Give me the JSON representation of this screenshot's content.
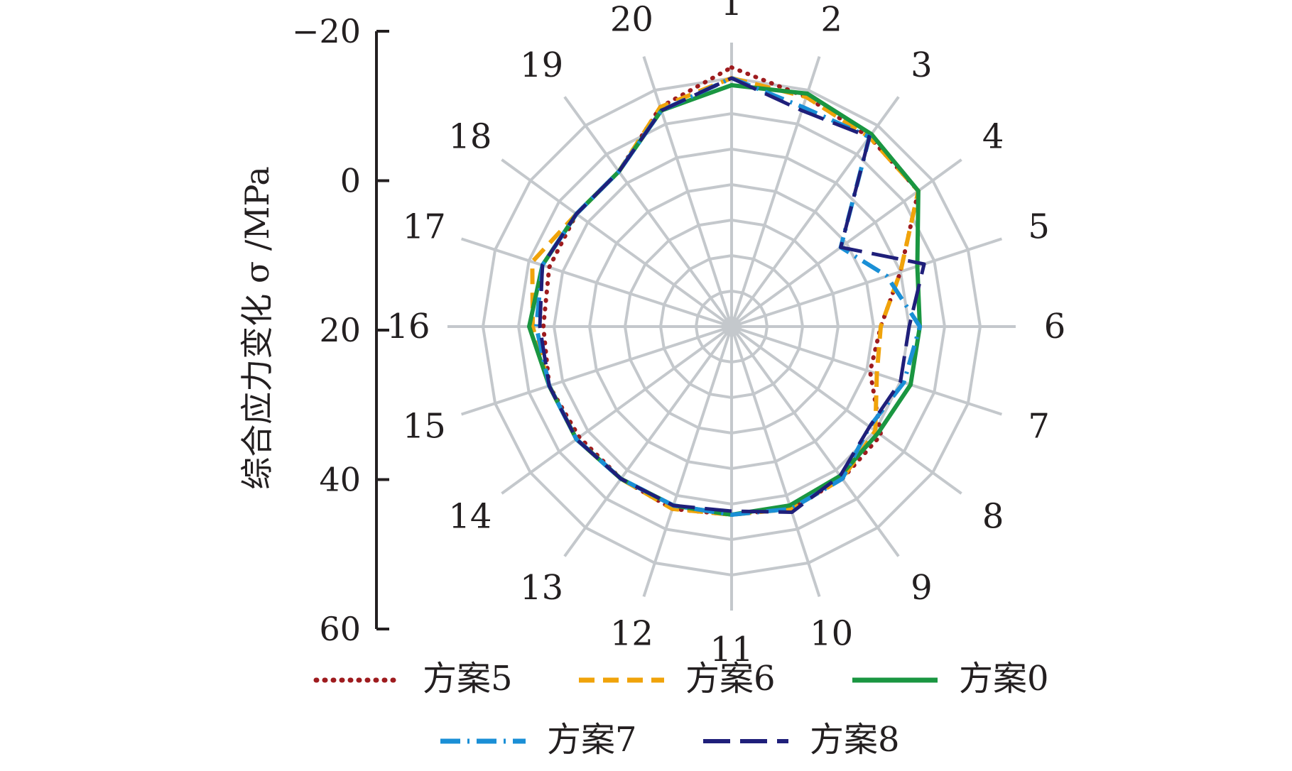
{
  "chart_data": {
    "type": "radar",
    "ylabel": "综合应力变化 σ /MPa",
    "categories": [
      "1",
      "2",
      "3",
      "4",
      "5",
      "6",
      "7",
      "8",
      "9",
      "10",
      "11",
      "12",
      "13",
      "14",
      "15",
      "16",
      "17",
      "18",
      "19",
      "20"
    ],
    "r_axis": {
      "ticks": [
        "-20",
        "0",
        "20",
        "40",
        "60"
      ],
      "ylim": [
        -20,
        60
      ],
      "inverted": true,
      "grid_rings": [
        -10,
        0,
        10,
        20,
        30,
        40,
        50,
        60
      ]
    },
    "grid": true,
    "legend_position": "bottom",
    "series": [
      {
        "name": "方案5",
        "color": "#9e1b1e",
        "style": "dotted",
        "values": [
          -13,
          -8,
          -6,
          -5,
          10,
          18,
          19,
          8,
          7,
          6,
          7,
          6,
          7,
          7,
          6,
          7,
          6,
          6,
          6,
          -5
        ]
      },
      {
        "name": "方案6",
        "color": "#f0a30a",
        "style": "dashed",
        "values": [
          -10,
          -8,
          -6,
          -5,
          10,
          18,
          17,
          10,
          7,
          6,
          7,
          6,
          7,
          6,
          6,
          4,
          1,
          6,
          6,
          -5
        ]
      },
      {
        "name": "方案0",
        "color": "#1a9641",
        "style": "solid",
        "values": [
          -8,
          -9,
          -7,
          -5,
          5,
          7,
          7,
          9,
          8,
          7,
          7,
          7,
          7,
          6,
          6,
          3,
          4,
          6,
          6,
          -4
        ]
      },
      {
        "name": "方案7",
        "color": "#1a8fd6",
        "style": "dashdot",
        "values": [
          -10,
          -5,
          -6,
          22,
          14,
          7,
          9,
          12,
          7,
          6,
          7,
          7,
          7,
          6,
          6,
          5,
          4,
          6,
          6,
          -4
        ]
      },
      {
        "name": "方案8",
        "color": "#1f1f7a",
        "style": "dashed-long",
        "values": [
          -10,
          -4,
          -6,
          22,
          3,
          10,
          10,
          12,
          8,
          5,
          8,
          7,
          7,
          6,
          6,
          6,
          4,
          6,
          6,
          -4
        ]
      }
    ]
  }
}
